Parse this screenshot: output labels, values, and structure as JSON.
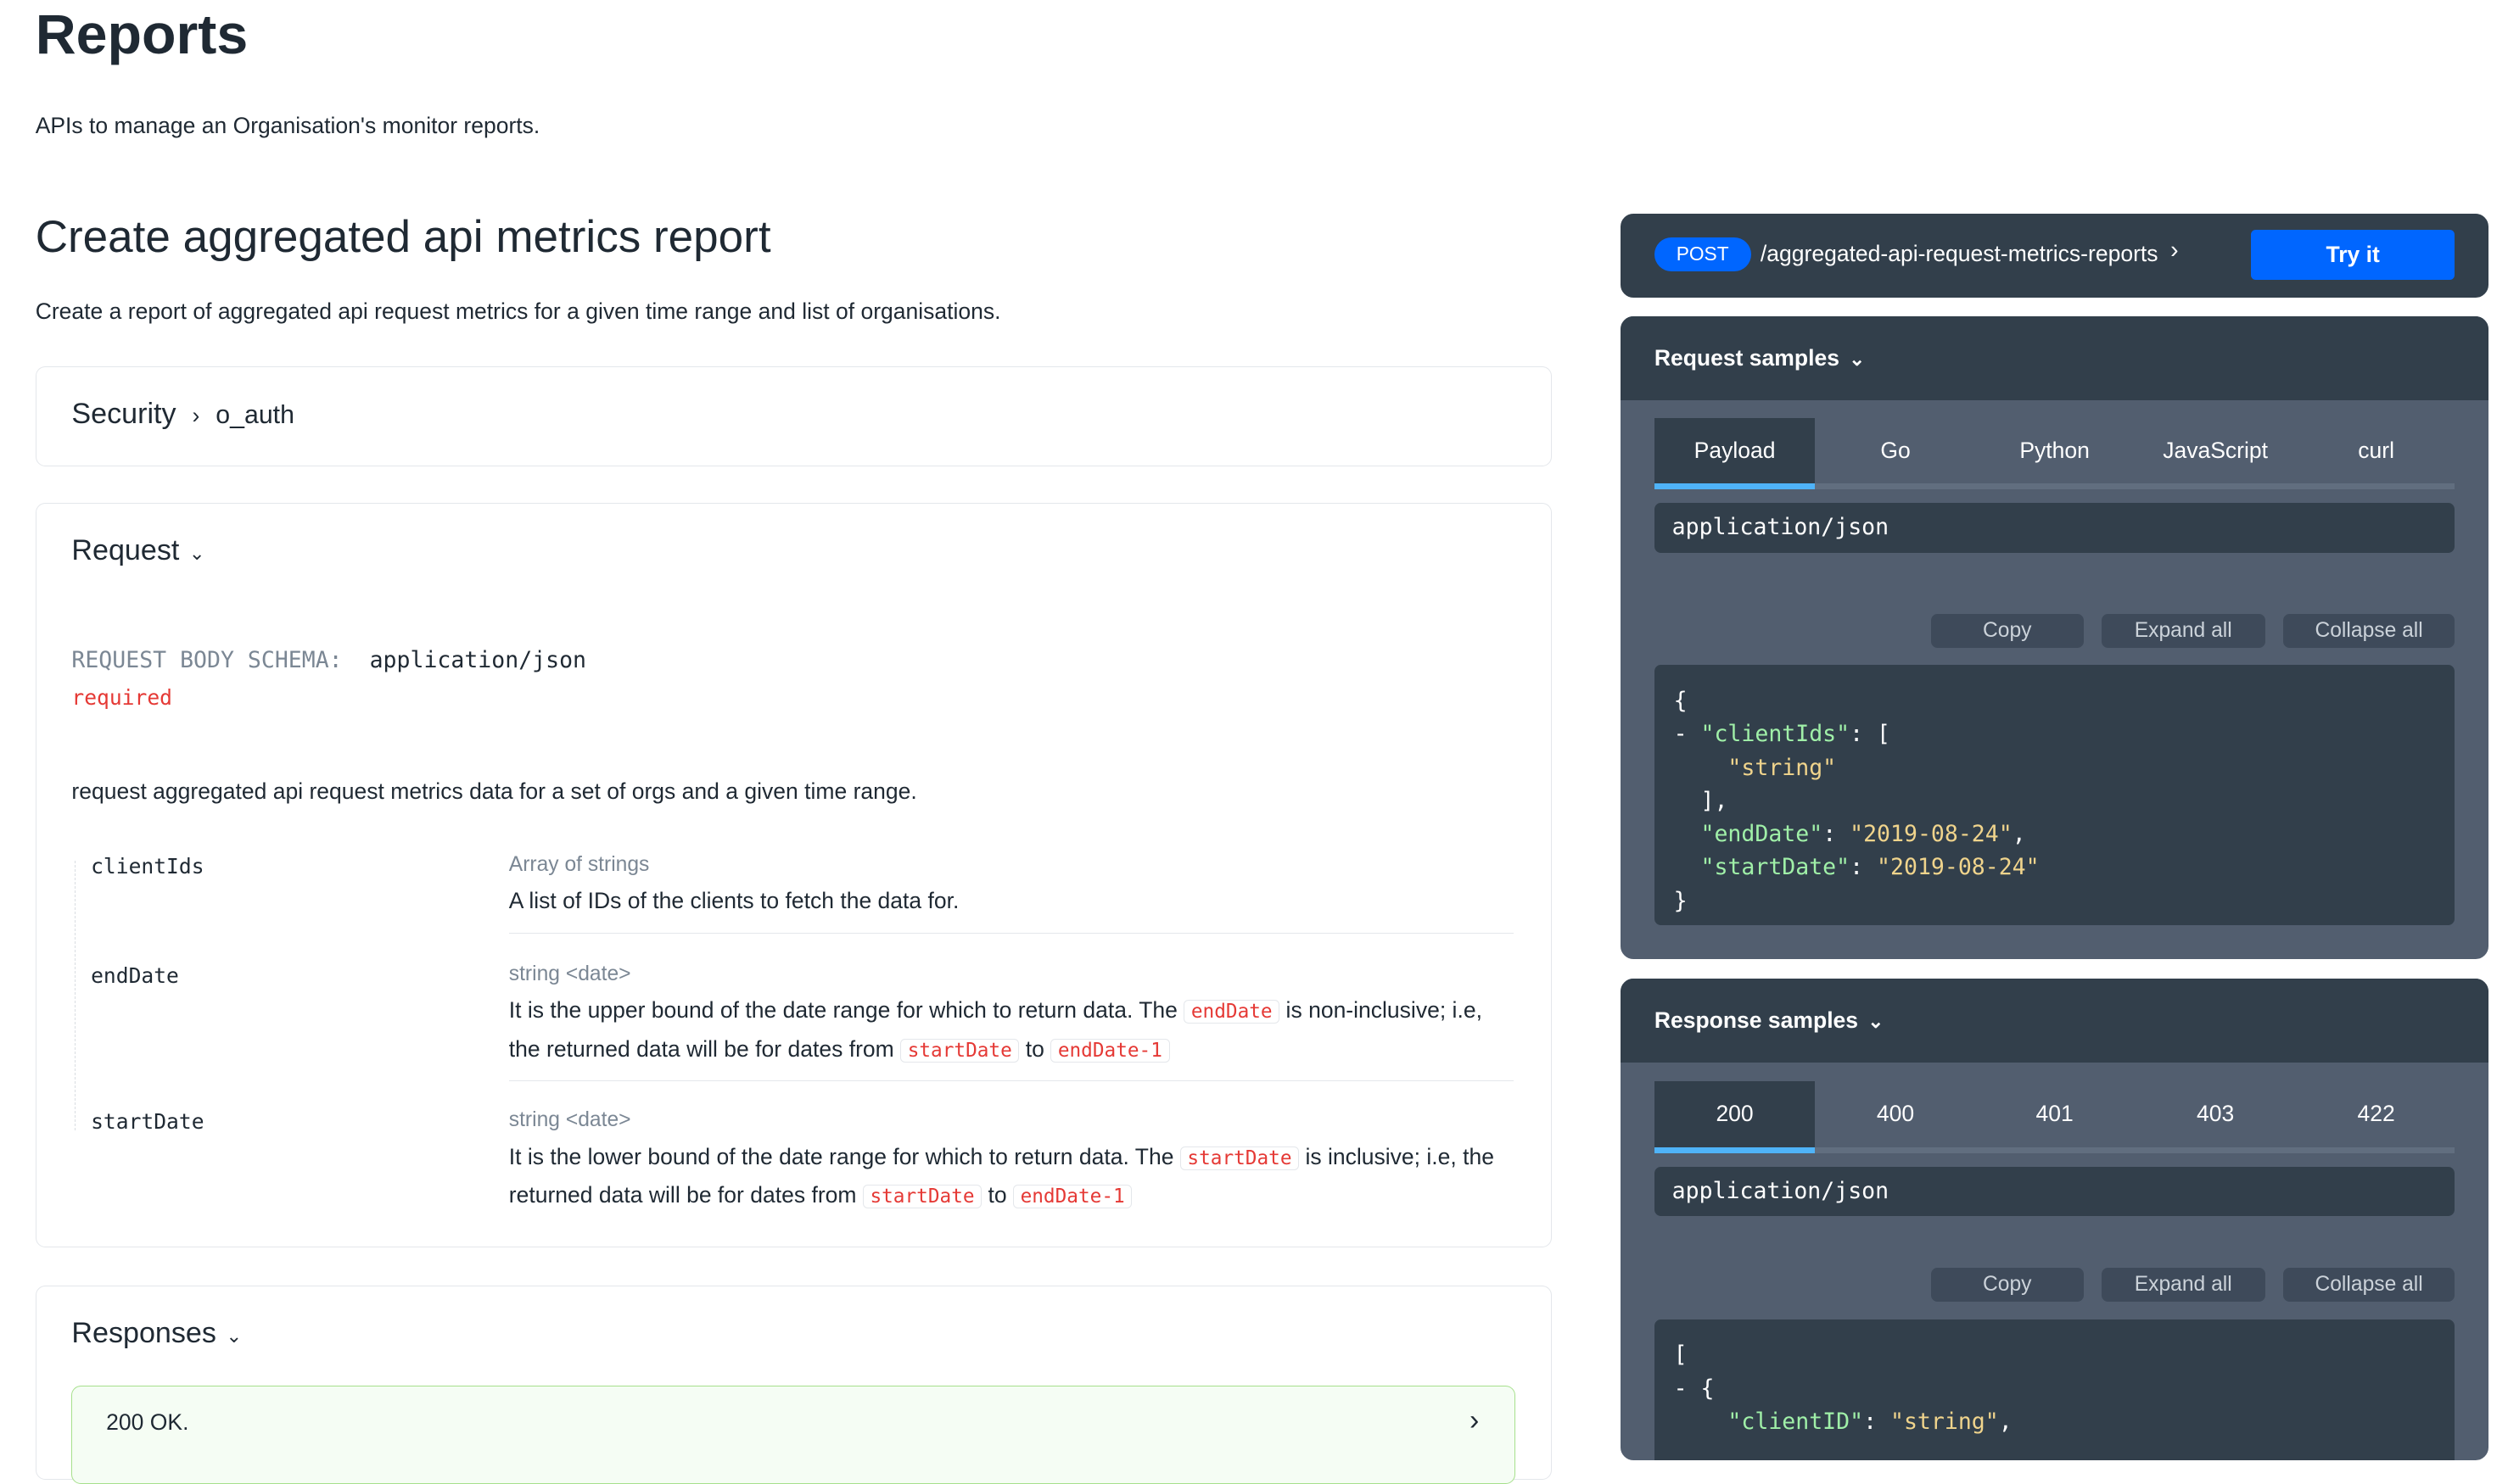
{
  "page": {
    "title": "Reports",
    "subtitle": "APIs to manage an Organisation's monitor reports."
  },
  "operation": {
    "title": "Create aggregated api metrics report",
    "description": "Create a report of aggregated api request metrics for a given time range and list of organisations."
  },
  "security": {
    "label": "Security",
    "scheme": "o_auth"
  },
  "request": {
    "label": "Request",
    "schema_label": "REQUEST BODY SCHEMA:",
    "schema_type": "application/json",
    "required": "required",
    "description": "request aggregated api request metrics data for a set of orgs and a given time range.",
    "fields": [
      {
        "name": "clientIds",
        "type": "Array of strings",
        "desc": "A list of IDs of the clients to fetch the data for."
      },
      {
        "name": "endDate",
        "type": "string <date>",
        "d1": "It is the upper bound of the date range for which to return data. The ",
        "c1": "endDate",
        "d2": " is non-inclusive; i.e, the returned data will be for dates from ",
        "c2": "startDate",
        "d3": " to ",
        "c3": "endDate-1"
      },
      {
        "name": "startDate",
        "type": "string <date>",
        "d1": "It is the lower bound of the date range for which to return data. The ",
        "c1": "startDate",
        "d2": " is inclusive; i.e, the returned data will be for dates from ",
        "c2": "startDate",
        "d3": " to ",
        "c3": "endDate-1"
      }
    ]
  },
  "responses": {
    "label": "Responses",
    "items": [
      {
        "label": "200 OK.",
        "color": "#f5fdf4"
      }
    ]
  },
  "endpoint": {
    "method": "POST",
    "path": "/aggregated-api-request-metrics-reports",
    "try_label": "Try it"
  },
  "request_samples": {
    "label": "Request samples",
    "tabs": [
      "Payload",
      "Go",
      "Python",
      "JavaScript",
      "curl"
    ],
    "content_type": "application/json",
    "buttons": [
      "Copy",
      "Expand all",
      "Collapse all"
    ],
    "code": {
      "l0": "{",
      "l1_pre": "- ",
      "k_clientIds": "\"clientIds\"",
      "l1_post": ": [",
      "v_string": "\"string\"",
      "l3": "],",
      "k_endDate": "\"endDate\"",
      "v_endDate": "\"2019-08-24\"",
      "k_startDate": "\"startDate\"",
      "v_startDate": "\"2019-08-24\"",
      "l6": "}"
    }
  },
  "response_samples": {
    "label": "Response samples",
    "tabs": [
      "200",
      "400",
      "401",
      "403",
      "422"
    ],
    "content_type": "application/json",
    "buttons": [
      "Copy",
      "Expand all",
      "Collapse all"
    ],
    "code": {
      "l0": "[",
      "l1": "- {",
      "k_clientID": "\"clientID\"",
      "v_clientID": "\"string\""
    }
  },
  "colors": {
    "accent": "#0066ff",
    "dark_panel": "#323f4b",
    "panel_body": "#525e6f",
    "tab_active": "#4fb3f8",
    "required": "#e53935",
    "json_key": "#a0f0a8",
    "json_string": "#f0d48c"
  }
}
